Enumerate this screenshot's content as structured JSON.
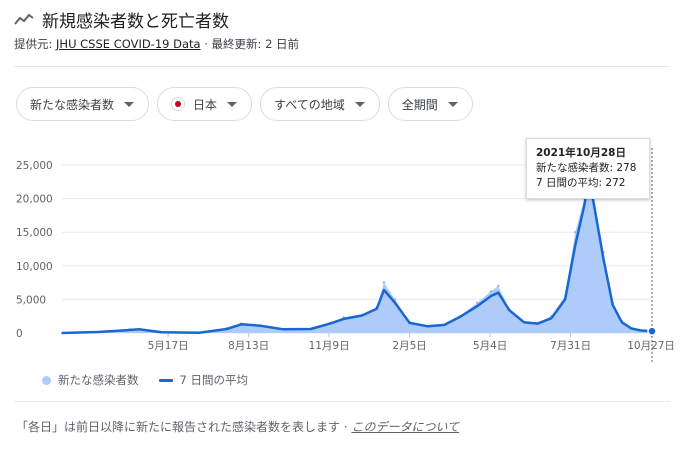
{
  "header": {
    "title": "新規感染者数と死亡者数",
    "source_prefix": "提供元: ",
    "source_link": "JHU CSSE COVID-19 Data",
    "updated": " · 最終更新: 2 日前"
  },
  "filters": {
    "metric": "新たな感染者数",
    "country": "日本",
    "region": "すべての地域",
    "period": "全期間"
  },
  "tooltip": {
    "date": "2021年10月28日",
    "cases_line": "新たな感染者数: 278",
    "avg_line": "7 日間の平均: 272"
  },
  "legend": {
    "cases": "新たな感染者数",
    "avg": "7 日間の平均"
  },
  "footer": {
    "note": "「各日」は前日以降に新たに報告された感染者数を表します · ",
    "about_link": "このデータについて"
  },
  "colors": {
    "bars": "#aecbfa",
    "line": "#1967d2",
    "grid": "#e8eaed"
  },
  "chart_data": {
    "type": "area",
    "title": "",
    "xlabel": "",
    "ylabel": "",
    "ylim": [
      0,
      25000
    ],
    "yticks": [
      0,
      5000,
      10000,
      15000,
      20000,
      25000
    ],
    "ytick_labels": [
      "0",
      "5,000",
      "10,000",
      "15,000",
      "20,000",
      "25,000"
    ],
    "xtick_labels": [
      "5月17日",
      "8月13日",
      "11月9日",
      "2月5日",
      "5月4日",
      "7月31日",
      "10月27日"
    ],
    "grid": true,
    "legend_position": "bottom",
    "x": [
      "2020-01-22",
      "2020-03-01",
      "2020-04-05",
      "2020-04-15",
      "2020-05-10",
      "2020-06-20",
      "2020-07-20",
      "2020-08-05",
      "2020-08-25",
      "2020-09-20",
      "2020-10-20",
      "2020-11-10",
      "2020-11-25",
      "2020-12-15",
      "2020-12-31",
      "2021-01-08",
      "2021-01-20",
      "2021-02-05",
      "2021-02-25",
      "2021-03-15",
      "2021-04-01",
      "2021-04-20",
      "2021-05-05",
      "2021-05-13",
      "2021-05-25",
      "2021-06-10",
      "2021-06-25",
      "2021-07-10",
      "2021-07-25",
      "2021-08-05",
      "2021-08-15",
      "2021-08-20",
      "2021-08-25",
      "2021-09-05",
      "2021-09-15",
      "2021-09-25",
      "2021-10-05",
      "2021-10-15",
      "2021-10-28"
    ],
    "series": [
      {
        "name": "新たな感染者数",
        "values": [
          0,
          150,
          550,
          600,
          100,
          50,
          700,
          1400,
          1100,
          550,
          600,
          1500,
          2300,
          2700,
          3800,
          7500,
          5000,
          1600,
          1000,
          1200,
          2500,
          4500,
          6200,
          7000,
          3500,
          1600,
          1500,
          2500,
          5500,
          15000,
          20000,
          24000,
          20000,
          12000,
          4500,
          1800,
          700,
          400,
          278
        ]
      },
      {
        "name": "7 日間の平均",
        "values": [
          0,
          150,
          450,
          550,
          100,
          50,
          600,
          1300,
          1100,
          550,
          600,
          1400,
          2100,
          2600,
          3600,
          6400,
          4500,
          1500,
          1000,
          1200,
          2400,
          4000,
          5500,
          6000,
          3400,
          1600,
          1400,
          2200,
          5000,
          13000,
          19000,
          23000,
          19500,
          11000,
          4200,
          1600,
          700,
          380,
          272
        ]
      }
    ]
  }
}
